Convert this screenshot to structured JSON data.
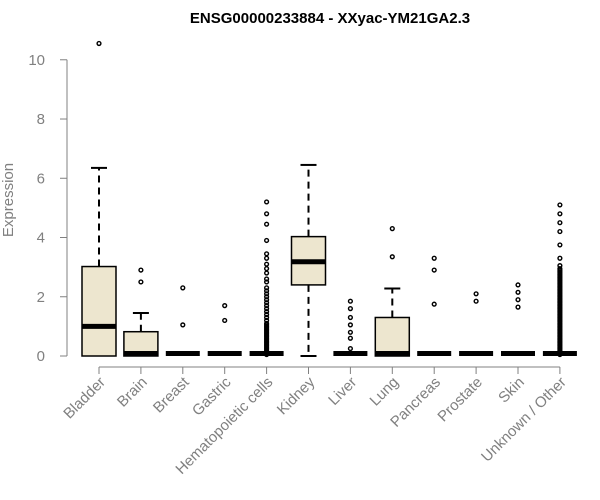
{
  "chart_data": {
    "type": "boxplot",
    "title": "ENSG00000233884 - XXyac-YM21GA2.3",
    "xlabel": "",
    "ylabel": "Expression",
    "ylim": [
      0,
      10.6
    ],
    "yticks": [
      0,
      2,
      4,
      6,
      8,
      10
    ],
    "grid": false,
    "colors": {
      "box_fill": "#ede6cf",
      "stroke": "#000000",
      "axis": "#808080"
    },
    "categories": [
      "Bladder",
      "Brain",
      "Breast",
      "Gastric",
      "Hematopoietic cells",
      "Kidney",
      "Liver",
      "Lung",
      "Pancreas",
      "Prostate",
      "Skin",
      "Unknown / Other"
    ],
    "boxes": [
      {
        "name": "Bladder",
        "min": 0,
        "q1": 0,
        "median": 1.0,
        "q3": 3.02,
        "max": 6.35,
        "outliers": [
          10.55
        ]
      },
      {
        "name": "Brain",
        "min": 0,
        "q1": 0,
        "median": 0.02,
        "q3": 0.82,
        "max": 1.45,
        "outliers": [
          2.5,
          2.9
        ]
      },
      {
        "name": "Breast",
        "min": 0,
        "q1": 0,
        "median": 0,
        "q3": 0,
        "max": 0,
        "outliers": [
          1.05,
          2.3
        ]
      },
      {
        "name": "Gastric",
        "min": 0,
        "q1": 0,
        "median": 0,
        "q3": 0,
        "max": 0,
        "outliers": [
          1.2,
          1.7
        ]
      },
      {
        "name": "Hematopoietic cells",
        "min": 0,
        "q1": 0,
        "median": 0,
        "q3": 0,
        "max": 0,
        "outliers": [
          0.05,
          0.1,
          0.15,
          0.2,
          0.25,
          0.3,
          0.35,
          0.4,
          0.45,
          0.5,
          0.55,
          0.6,
          0.65,
          0.7,
          0.75,
          0.8,
          0.85,
          0.9,
          0.95,
          1.0,
          1.05,
          1.1,
          1.2,
          1.3,
          1.4,
          1.5,
          1.6,
          1.7,
          1.8,
          1.9,
          2.0,
          2.1,
          2.2,
          2.3,
          2.5,
          2.6,
          2.8,
          2.95,
          3.1,
          3.3,
          3.45,
          3.9,
          4.45,
          4.8,
          5.2
        ]
      },
      {
        "name": "Kidney",
        "min": 0,
        "q1": 2.4,
        "median": 3.18,
        "q3": 4.03,
        "max": 6.45,
        "outliers": []
      },
      {
        "name": "Liver",
        "min": 0,
        "q1": 0,
        "median": 0,
        "q3": 0,
        "max": 0,
        "outliers": [
          0.25,
          0.6,
          0.8,
          1.05,
          1.3,
          1.6,
          1.85
        ]
      },
      {
        "name": "Lung",
        "min": 0,
        "q1": 0,
        "median": 0.02,
        "q3": 1.3,
        "max": 2.28,
        "outliers": [
          3.35,
          4.3
        ]
      },
      {
        "name": "Pancreas",
        "min": 0,
        "q1": 0,
        "median": 0,
        "q3": 0,
        "max": 0,
        "outliers": [
          1.75,
          2.9,
          3.3
        ]
      },
      {
        "name": "Prostate",
        "min": 0,
        "q1": 0,
        "median": 0,
        "q3": 0,
        "max": 0,
        "outliers": [
          1.85,
          2.1
        ]
      },
      {
        "name": "Skin",
        "min": 0,
        "q1": 0,
        "median": 0,
        "q3": 0,
        "max": 0,
        "outliers": [
          1.65,
          1.9,
          2.15,
          2.4
        ]
      },
      {
        "name": "Unknown / Other",
        "min": 0,
        "q1": 0,
        "median": 0,
        "q3": 0,
        "max": 0,
        "outliers": [
          0.05,
          0.1,
          0.15,
          0.2,
          0.25,
          0.3,
          0.35,
          0.4,
          0.45,
          0.5,
          0.55,
          0.6,
          0.65,
          0.7,
          0.75,
          0.8,
          0.85,
          0.9,
          0.95,
          1.0,
          1.05,
          1.1,
          1.15,
          1.2,
          1.25,
          1.3,
          1.35,
          1.4,
          1.45,
          1.5,
          1.55,
          1.6,
          1.65,
          1.7,
          1.75,
          1.8,
          1.85,
          1.9,
          1.95,
          2.0,
          2.05,
          2.1,
          2.15,
          2.2,
          2.25,
          2.3,
          2.35,
          2.4,
          2.45,
          2.5,
          2.55,
          2.6,
          2.65,
          2.7,
          2.75,
          2.8,
          2.85,
          2.9,
          2.95,
          3.05,
          3.3,
          3.75,
          4.2,
          4.5,
          4.8,
          5.1
        ]
      }
    ]
  }
}
